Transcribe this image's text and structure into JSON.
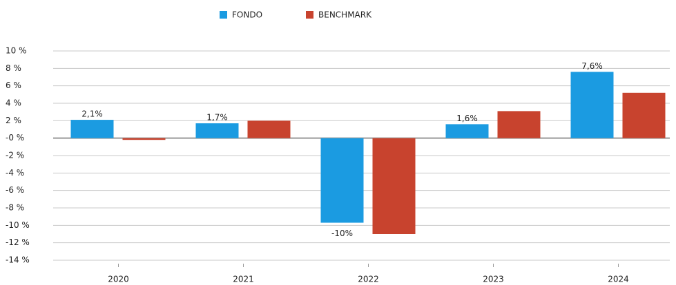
{
  "chart_data": {
    "type": "bar",
    "categories": [
      "2020",
      "2021",
      "2022",
      "2023",
      "2024"
    ],
    "series": [
      {
        "name": "FONDO",
        "color": "#1b9be1",
        "values": [
          2.1,
          1.7,
          -9.7,
          1.6,
          7.6
        ],
        "value_labels": [
          "2,1%",
          "1,7%",
          "-10%",
          "1,6%",
          "7,6%"
        ]
      },
      {
        "name": "BENCHMARK",
        "color": "#c8432e",
        "values": [
          -0.2,
          2.0,
          -11.0,
          3.1,
          5.2
        ]
      }
    ],
    "ylim": [
      -14,
      10
    ],
    "yticks": [
      {
        "value": -14,
        "label": "-14 %"
      },
      {
        "value": -12,
        "label": "-12 %"
      },
      {
        "value": -10,
        "label": "-10 %"
      },
      {
        "value": -8,
        "label": "-8 %"
      },
      {
        "value": -6,
        "label": "-6 %"
      },
      {
        "value": -4,
        "label": "-4 %"
      },
      {
        "value": -2,
        "label": "-2 %"
      },
      {
        "value": 0,
        "label": "-0 %"
      },
      {
        "value": 2,
        "label": "2 %"
      },
      {
        "value": 4,
        "label": "4 %"
      },
      {
        "value": 6,
        "label": "6 %"
      },
      {
        "value": 8,
        "label": "8 %"
      },
      {
        "value": 10,
        "label": "10 %"
      }
    ],
    "grid": true
  }
}
